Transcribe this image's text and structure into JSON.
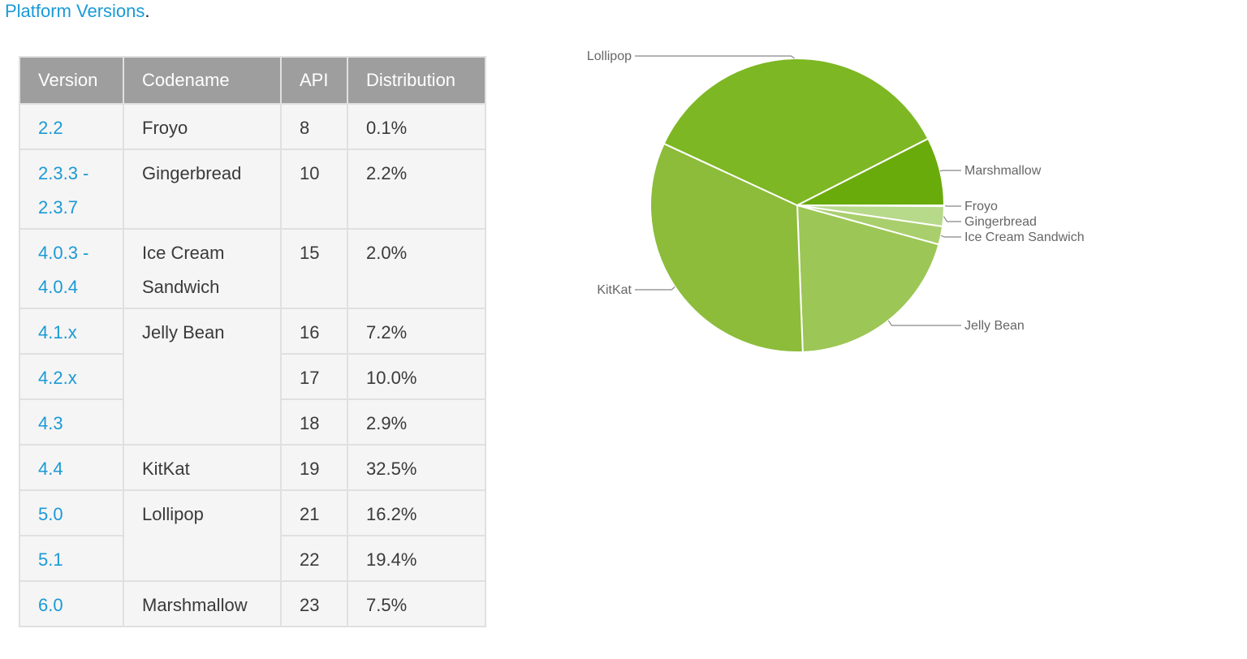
{
  "heading": {
    "link": "Platform Versions",
    "suffix": "."
  },
  "table": {
    "headers": [
      "Version",
      "Codename",
      "API",
      "Distribution"
    ],
    "rows": [
      {
        "version": "2.2",
        "codename": "Froyo",
        "api": "8",
        "dist": "0.1%"
      },
      {
        "version": "2.3.3 - 2.3.7",
        "codename": "Gingerbread",
        "api": "10",
        "dist": "2.2%"
      },
      {
        "version": "4.0.3 - 4.0.4",
        "codename": "Ice Cream Sandwich",
        "api": "15",
        "dist": "2.0%"
      },
      {
        "version": "4.1.x",
        "codename": "Jelly Bean",
        "api": "16",
        "dist": "7.2%"
      },
      {
        "version": "4.2.x",
        "codename": "",
        "api": "17",
        "dist": "10.0%"
      },
      {
        "version": "4.3",
        "codename": "",
        "api": "18",
        "dist": "2.9%"
      },
      {
        "version": "4.4",
        "codename": "KitKat",
        "api": "19",
        "dist": "32.5%"
      },
      {
        "version": "5.0",
        "codename": "Lollipop",
        "api": "21",
        "dist": "16.2%"
      },
      {
        "version": "5.1",
        "codename": "",
        "api": "22",
        "dist": "19.4%"
      },
      {
        "version": "6.0",
        "codename": "Marshmallow",
        "api": "23",
        "dist": "7.5%"
      }
    ]
  },
  "chart_data": {
    "type": "pie",
    "start": "3 o'clock, clockwise",
    "slices": [
      {
        "label": "Froyo",
        "value": 0.1,
        "color": "#c5e19d"
      },
      {
        "label": "Gingerbread",
        "value": 2.2,
        "color": "#b7d98a"
      },
      {
        "label": "Ice Cream Sandwich",
        "value": 2.0,
        "color": "#a9cf6d"
      },
      {
        "label": "Jelly Bean",
        "value": 20.1,
        "color": "#9cc656"
      },
      {
        "label": "KitKat",
        "value": 32.5,
        "color": "#8cbc3a"
      },
      {
        "label": "Lollipop",
        "value": 35.6,
        "color": "#7db723"
      },
      {
        "label": "Marshmallow",
        "value": 7.5,
        "color": "#6aab0c"
      }
    ]
  }
}
